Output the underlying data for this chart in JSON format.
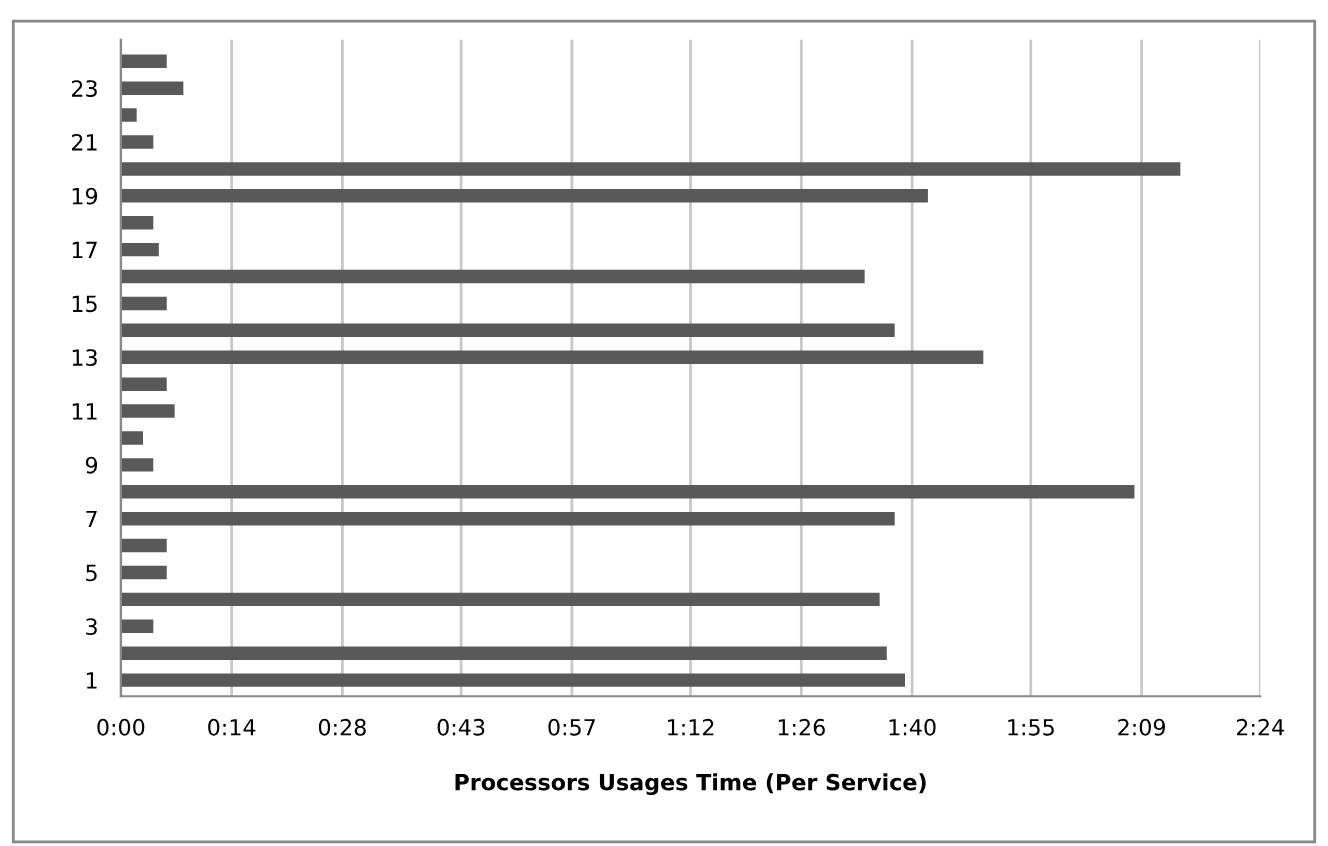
{
  "chart_data": {
    "type": "bar",
    "orientation": "horizontal",
    "xlabel": "Processors Usages Time (Per Service)",
    "categories": [
      null,
      "23",
      null,
      "21",
      null,
      "19",
      null,
      "17",
      null,
      "15",
      null,
      "13",
      null,
      "11",
      null,
      "9",
      null,
      "7",
      null,
      "5",
      null,
      "3",
      null,
      "1"
    ],
    "values": [
      5.8,
      7.9,
      2.0,
      4.1,
      133.9,
      102.0,
      4.1,
      4.8,
      94.0,
      5.8,
      97.8,
      109.0,
      5.8,
      6.8,
      2.8,
      4.1,
      128.1,
      97.8,
      5.8,
      5.8,
      95.9,
      4.1,
      96.8,
      99.1
    ],
    "color": "#595959",
    "xlim": [
      0,
      144
    ],
    "xticks": [
      {
        "value": 0,
        "label": "0:00"
      },
      {
        "value": 14,
        "label": "0:14"
      },
      {
        "value": 28,
        "label": "0:28"
      },
      {
        "value": 43,
        "label": "0:43"
      },
      {
        "value": 57,
        "label": "0:57"
      },
      {
        "value": 72,
        "label": "1:12"
      },
      {
        "value": 86,
        "label": "1:26"
      },
      {
        "value": 100,
        "label": "1:40"
      },
      {
        "value": 115,
        "label": "1:55"
      },
      {
        "value": 129,
        "label": "2:09"
      },
      {
        "value": 144,
        "label": "2:24"
      }
    ],
    "grid": "x",
    "legend": false
  }
}
